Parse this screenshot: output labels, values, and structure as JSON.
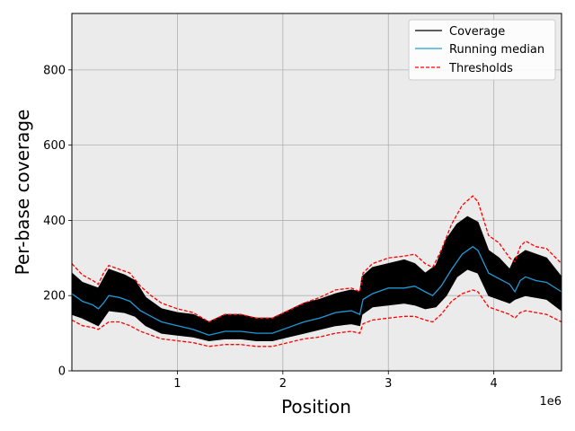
{
  "chart_data": {
    "type": "line",
    "xlabel": "Position",
    "ylabel": "Per-base coverage",
    "x_offset_label": "1e6",
    "xlim": [
      0,
      4641652
    ],
    "ylim": [
      0,
      950
    ],
    "x_ticks": [
      1000000,
      2000000,
      3000000,
      4000000
    ],
    "x_tick_labels": [
      "1",
      "2",
      "3",
      "4"
    ],
    "y_ticks": [
      0,
      200,
      400,
      600,
      800
    ],
    "y_tick_labels": [
      "0",
      "200",
      "400",
      "600",
      "800"
    ],
    "grid": true,
    "background": "#ebebeb",
    "legend_position": "top-right",
    "series": [
      {
        "name": "Coverage",
        "color": "#000000",
        "style": "solid",
        "x": [
          0,
          100000,
          250000,
          350000,
          500000,
          600000,
          700000,
          850000,
          1000000,
          1150000,
          1300000,
          1450000,
          1600000,
          1750000,
          1900000,
          2050000,
          2200000,
          2350000,
          2500000,
          2650000,
          2730000,
          2750000,
          2850000,
          3000000,
          3150000,
          3250000,
          3350000,
          3450000,
          3550000,
          3650000,
          3750000,
          3850000,
          3950000,
          4050000,
          4150000,
          4200000,
          4300000,
          4400000,
          4500000,
          4641652
        ],
        "lower": [
          150,
          140,
          120,
          160,
          155,
          145,
          120,
          100,
          95,
          90,
          80,
          85,
          85,
          80,
          80,
          90,
          100,
          110,
          120,
          125,
          120,
          150,
          170,
          175,
          180,
          175,
          165,
          170,
          200,
          250,
          270,
          260,
          200,
          190,
          180,
          190,
          200,
          195,
          190,
          160
        ],
        "upper": [
          260,
          235,
          220,
          270,
          255,
          240,
          195,
          165,
          155,
          150,
          130,
          150,
          150,
          140,
          140,
          160,
          180,
          190,
          205,
          215,
          210,
          250,
          275,
          285,
          295,
          285,
          260,
          280,
          350,
          390,
          410,
          395,
          320,
          300,
          270,
          300,
          320,
          310,
          300,
          250
        ]
      },
      {
        "name": "Running median",
        "color": "#1f9bd6",
        "style": "solid",
        "x": [
          0,
          100000,
          200000,
          250000,
          300000,
          350000,
          450000,
          550000,
          650000,
          750000,
          850000,
          1000000,
          1150000,
          1300000,
          1450000,
          1600000,
          1750000,
          1900000,
          2050000,
          2200000,
          2350000,
          2500000,
          2650000,
          2730000,
          2760000,
          2850000,
          3000000,
          3150000,
          3250000,
          3350000,
          3420000,
          3500000,
          3600000,
          3700000,
          3800000,
          3850000,
          3950000,
          4050000,
          4150000,
          4200000,
          4250000,
          4300000,
          4400000,
          4500000,
          4641652
        ],
        "y": [
          205,
          185,
          175,
          165,
          180,
          200,
          195,
          185,
          160,
          145,
          130,
          120,
          110,
          95,
          105,
          105,
          100,
          100,
          115,
          130,
          140,
          155,
          160,
          150,
          190,
          205,
          220,
          220,
          225,
          210,
          200,
          225,
          270,
          310,
          330,
          320,
          260,
          245,
          230,
          210,
          240,
          250,
          240,
          235,
          210
        ]
      },
      {
        "name": "Thresholds",
        "color": "#ff0000",
        "style": "dashed",
        "x": [
          0,
          100000,
          200000,
          250000,
          300000,
          350000,
          450000,
          550000,
          650000,
          750000,
          850000,
          1000000,
          1150000,
          1300000,
          1450000,
          1600000,
          1750000,
          1900000,
          2050000,
          2200000,
          2350000,
          2500000,
          2650000,
          2730000,
          2760000,
          2850000,
          3000000,
          3150000,
          3250000,
          3350000,
          3420000,
          3500000,
          3600000,
          3700000,
          3800000,
          3850000,
          3950000,
          4050000,
          4150000,
          4200000,
          4250000,
          4300000,
          4400000,
          4500000,
          4641652
        ],
        "upper": [
          285,
          255,
          240,
          230,
          260,
          280,
          270,
          260,
          225,
          200,
          180,
          165,
          155,
          130,
          150,
          150,
          140,
          140,
          160,
          180,
          195,
          215,
          220,
          210,
          260,
          285,
          300,
          305,
          310,
          285,
          275,
          320,
          390,
          440,
          465,
          450,
          360,
          340,
          300,
          290,
          330,
          345,
          330,
          325,
          285
        ],
        "lower": [
          135,
          120,
          115,
          110,
          120,
          130,
          130,
          120,
          105,
          95,
          85,
          80,
          75,
          65,
          70,
          70,
          65,
          65,
          75,
          85,
          90,
          100,
          105,
          100,
          125,
          135,
          140,
          145,
          145,
          135,
          130,
          150,
          185,
          205,
          215,
          210,
          170,
          160,
          150,
          140,
          155,
          160,
          155,
          150,
          130
        ]
      }
    ]
  },
  "legend": {
    "items": [
      {
        "label": "Coverage",
        "color": "#000000",
        "style": "solid"
      },
      {
        "label": "Running median",
        "color": "#1f9bd6",
        "style": "solid"
      },
      {
        "label": "Thresholds",
        "color": "#ff0000",
        "style": "dashed"
      }
    ]
  }
}
